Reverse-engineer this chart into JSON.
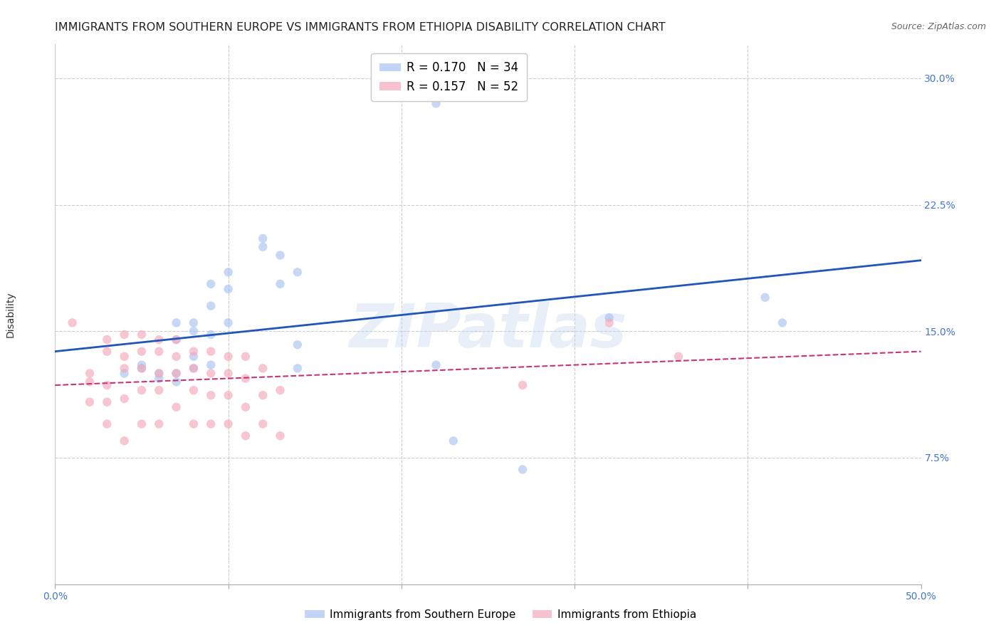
{
  "title": "IMMIGRANTS FROM SOUTHERN EUROPE VS IMMIGRANTS FROM ETHIOPIA DISABILITY CORRELATION CHART",
  "source": "Source: ZipAtlas.com",
  "ylabel": "Disability",
  "xlim": [
    0.0,
    0.5
  ],
  "ylim": [
    0.0,
    0.32
  ],
  "xticks": [
    0.0,
    0.1,
    0.2,
    0.3,
    0.4,
    0.5
  ],
  "yticks": [
    0.075,
    0.15,
    0.225,
    0.3
  ],
  "xticklabels": [
    "0.0%",
    "",
    "",
    "",
    "",
    "50.0%"
  ],
  "yticklabels": [
    "7.5%",
    "15.0%",
    "22.5%",
    "30.0%"
  ],
  "blue_scatter_x": [
    0.22,
    0.04,
    0.05,
    0.05,
    0.06,
    0.06,
    0.07,
    0.07,
    0.07,
    0.07,
    0.08,
    0.08,
    0.08,
    0.08,
    0.09,
    0.09,
    0.09,
    0.09,
    0.1,
    0.1,
    0.1,
    0.12,
    0.12,
    0.13,
    0.13,
    0.14,
    0.14,
    0.14,
    0.22,
    0.23,
    0.27,
    0.32,
    0.41,
    0.42
  ],
  "blue_scatter_y": [
    0.285,
    0.125,
    0.128,
    0.13,
    0.125,
    0.122,
    0.155,
    0.145,
    0.125,
    0.12,
    0.155,
    0.15,
    0.135,
    0.128,
    0.178,
    0.165,
    0.148,
    0.13,
    0.185,
    0.175,
    0.155,
    0.205,
    0.2,
    0.195,
    0.178,
    0.185,
    0.142,
    0.128,
    0.13,
    0.085,
    0.068,
    0.158,
    0.17,
    0.155
  ],
  "pink_scatter_x": [
    0.01,
    0.02,
    0.02,
    0.02,
    0.03,
    0.03,
    0.03,
    0.03,
    0.03,
    0.04,
    0.04,
    0.04,
    0.04,
    0.04,
    0.05,
    0.05,
    0.05,
    0.05,
    0.05,
    0.06,
    0.06,
    0.06,
    0.06,
    0.06,
    0.07,
    0.07,
    0.07,
    0.07,
    0.08,
    0.08,
    0.08,
    0.08,
    0.09,
    0.09,
    0.09,
    0.09,
    0.1,
    0.1,
    0.1,
    0.1,
    0.11,
    0.11,
    0.11,
    0.11,
    0.12,
    0.12,
    0.12,
    0.13,
    0.13,
    0.27,
    0.32,
    0.36
  ],
  "pink_scatter_y": [
    0.155,
    0.125,
    0.12,
    0.108,
    0.145,
    0.138,
    0.118,
    0.108,
    0.095,
    0.148,
    0.135,
    0.128,
    0.11,
    0.085,
    0.148,
    0.138,
    0.128,
    0.115,
    0.095,
    0.145,
    0.138,
    0.125,
    0.115,
    0.095,
    0.145,
    0.135,
    0.125,
    0.105,
    0.138,
    0.128,
    0.115,
    0.095,
    0.138,
    0.125,
    0.112,
    0.095,
    0.135,
    0.125,
    0.112,
    0.095,
    0.135,
    0.122,
    0.105,
    0.088,
    0.128,
    0.112,
    0.095,
    0.115,
    0.088,
    0.118,
    0.155,
    0.135
  ],
  "blue_line_x": [
    0.0,
    0.5
  ],
  "blue_line_y": [
    0.138,
    0.192
  ],
  "pink_line_x": [
    0.0,
    0.5
  ],
  "pink_line_y": [
    0.118,
    0.138
  ],
  "blue_color": "#a8c4f0",
  "pink_color": "#f4a8b8",
  "blue_line_color": "#2255bb",
  "pink_line_color": "#cc3377",
  "watermark": "ZIPatlas",
  "background_color": "#ffffff",
  "scatter_size": 80,
  "title_fontsize": 11.5,
  "axis_label_fontsize": 10,
  "tick_fontsize": 10,
  "legend_fontsize": 12,
  "tick_color": "#4477cc"
}
